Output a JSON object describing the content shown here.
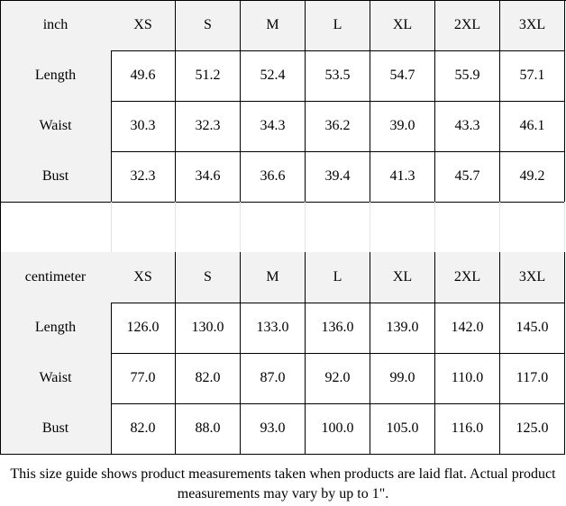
{
  "tables": [
    {
      "header": [
        "inch",
        "XS",
        "S",
        "M",
        "L",
        "XL",
        "2XL",
        "3XL"
      ],
      "rows": [
        [
          "Length",
          "49.6",
          "51.2",
          "52.4",
          "53.5",
          "54.7",
          "55.9",
          "57.1"
        ],
        [
          "Waist",
          "30.3",
          "32.3",
          "34.3",
          "36.2",
          "39.0",
          "43.3",
          "46.1"
        ],
        [
          "Bust",
          "32.3",
          "34.6",
          "36.6",
          "39.4",
          "41.3",
          "45.7",
          "49.2"
        ]
      ]
    },
    {
      "header": [
        "centimeter",
        "XS",
        "S",
        "M",
        "L",
        "XL",
        "2XL",
        "3XL"
      ],
      "rows": [
        [
          "Length",
          "126.0",
          "130.0",
          "133.0",
          "136.0",
          "139.0",
          "142.0",
          "145.0"
        ],
        [
          "Waist",
          "77.0",
          "82.0",
          "87.0",
          "92.0",
          "99.0",
          "110.0",
          "117.0"
        ],
        [
          "Bust",
          "82.0",
          "88.0",
          "93.0",
          "100.0",
          "105.0",
          "116.0",
          "125.0"
        ]
      ]
    }
  ],
  "note": "This size guide shows product measurements taken when products are laid flat. Actual product measurements may vary by up to 1\"."
}
